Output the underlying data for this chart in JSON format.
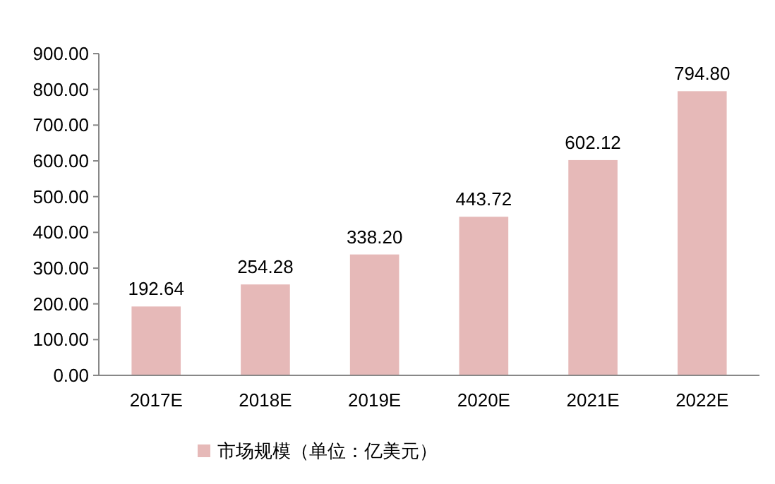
{
  "chart_data": {
    "type": "bar",
    "categories": [
      "2017E",
      "2018E",
      "2019E",
      "2020E",
      "2021E",
      "2022E"
    ],
    "series": [
      {
        "name": "市场规模（单位：亿美元）",
        "color": "#e6b9b8",
        "values": [
          192.64,
          254.28,
          338.2,
          443.72,
          602.12,
          794.8
        ],
        "value_labels": [
          "192.64",
          "254.28",
          "338.20",
          "443.72",
          "602.12",
          "794.80"
        ]
      }
    ],
    "ylim": [
      0,
      900
    ],
    "yticks": [
      {
        "value": 0,
        "label": "0.00"
      },
      {
        "value": 100,
        "label": "100.00"
      },
      {
        "value": 200,
        "label": "200.00"
      },
      {
        "value": 300,
        "label": "300.00"
      },
      {
        "value": 400,
        "label": "400.00"
      },
      {
        "value": 500,
        "label": "500.00"
      },
      {
        "value": 600,
        "label": "600.00"
      },
      {
        "value": 700,
        "label": "700.00"
      },
      {
        "value": 800,
        "label": "800.00"
      },
      {
        "value": 900,
        "label": "900.00"
      }
    ],
    "grid": false,
    "legend": "bottom"
  }
}
